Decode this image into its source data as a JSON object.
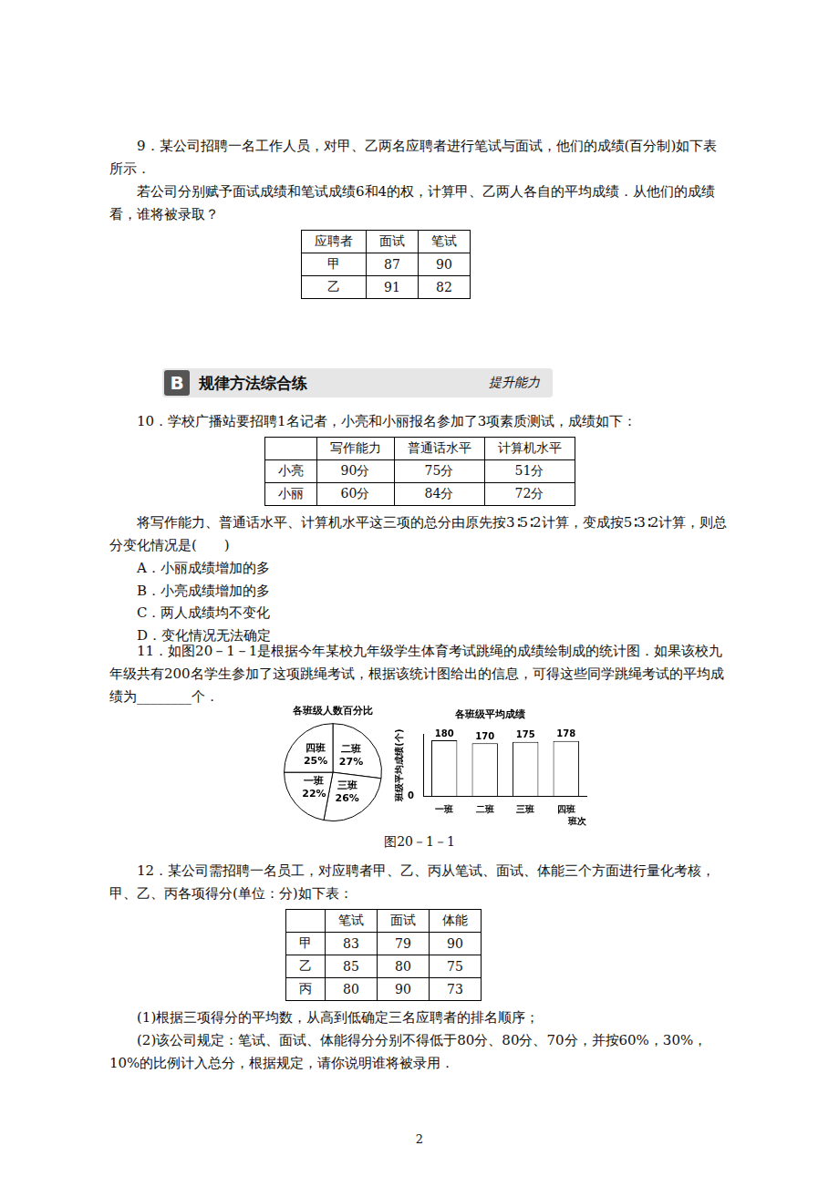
{
  "page": {
    "q9": {
      "text": [
        "9．某公司招聘一名工作人员，对甲、乙两名应聘者进行笔试与面试，他们的成绩(百分制)如下表所示．",
        "若公司分别赋予面试成绩和笔试成绩6和4的权，计算甲、乙两人各自的平均成绩．从他们的成绩看，谁将被录取？"
      ],
      "table": {
        "header": [
          "应聘者",
          "面试",
          "笔试"
        ],
        "rows": [
          [
            "甲",
            87,
            90
          ],
          [
            "乙",
            91,
            82
          ]
        ]
      }
    },
    "banner": {
      "letter": "B",
      "title": "规律方法综合练",
      "subtitle": "提升能力"
    },
    "q10": {
      "text": "10．学校广播站要招聘1名记者，小亮和小丽报名参加了3项素质测试，成绩如下：",
      "table": {
        "header": [
          "",
          "写作能力",
          "普通话水平",
          "计算机水平"
        ],
        "rows": [
          [
            "小亮",
            "90分",
            "75分",
            "51分"
          ],
          [
            "小丽",
            "60分",
            "84分",
            "72分"
          ]
        ]
      },
      "text2": "将写作能力、普通话水平、计算机水平这三项的总分由原先按3∶5∶2计算，变成按5∶3∶2计算，则总分变化情况是(　　)",
      "options": [
        "A．小丽成绩增加的多",
        "B．小亮成绩增加的多",
        "C．两人成绩均不变化",
        "D．变化情况无法确定"
      ]
    },
    "q11": {
      "text": "11．如图20－1－1是根据今年某校九年级学生体育考试跳绳的成绩绘制成的统计图．如果该校九年级共有200名学生参加了这项跳绳考试，根据该统计图给出的信息，可得这些同学跳绳考试的平均成绩为________个．",
      "caption": "图20－1－1"
    },
    "q12": {
      "text": "12．某公司需招聘一名员工，对应聘者甲、乙、丙从笔试、面试、体能三个方面进行量化考核，甲、乙、丙各项得分(单位：分)如下表：",
      "table": {
        "header": [
          "",
          "笔试",
          "面试",
          "体能"
        ],
        "rows": [
          [
            "甲",
            83,
            79,
            90
          ],
          [
            "乙",
            85,
            80,
            75
          ],
          [
            "丙",
            80,
            90,
            73
          ]
        ]
      },
      "parts": [
        "(1)根据三项得分的平均数，从高到低确定三名应聘者的排名顺序；",
        "(2)该公司规定：笔试、面试、体能得分分别不得低于80分、80分、70分，并按60%，30%，10%的比例计入总分，根据规定，请你说明谁将被录用．"
      ]
    },
    "page_number": "2"
  },
  "chart_data": [
    {
      "type": "pie",
      "title": "各班级人数百分比",
      "categories": [
        "二班",
        "三班",
        "一班",
        "四班"
      ],
      "values": [
        27,
        26,
        22,
        25
      ],
      "value_labels": [
        "27%",
        "26%",
        "22%",
        "25%"
      ],
      "data_labels": true,
      "color": "#ffffff"
    },
    {
      "type": "bar",
      "title": "各班级平均成绩",
      "y_label": "班级平均成绩(个)",
      "x_label": "班次",
      "categories": [
        "一班",
        "二班",
        "三班",
        "四班"
      ],
      "values": [
        180,
        170,
        175,
        178
      ],
      "data_labels": true,
      "ylim": [
        0,
        200
      ],
      "yticks": [
        0
      ],
      "grid": false,
      "color": "#ffffff"
    }
  ]
}
